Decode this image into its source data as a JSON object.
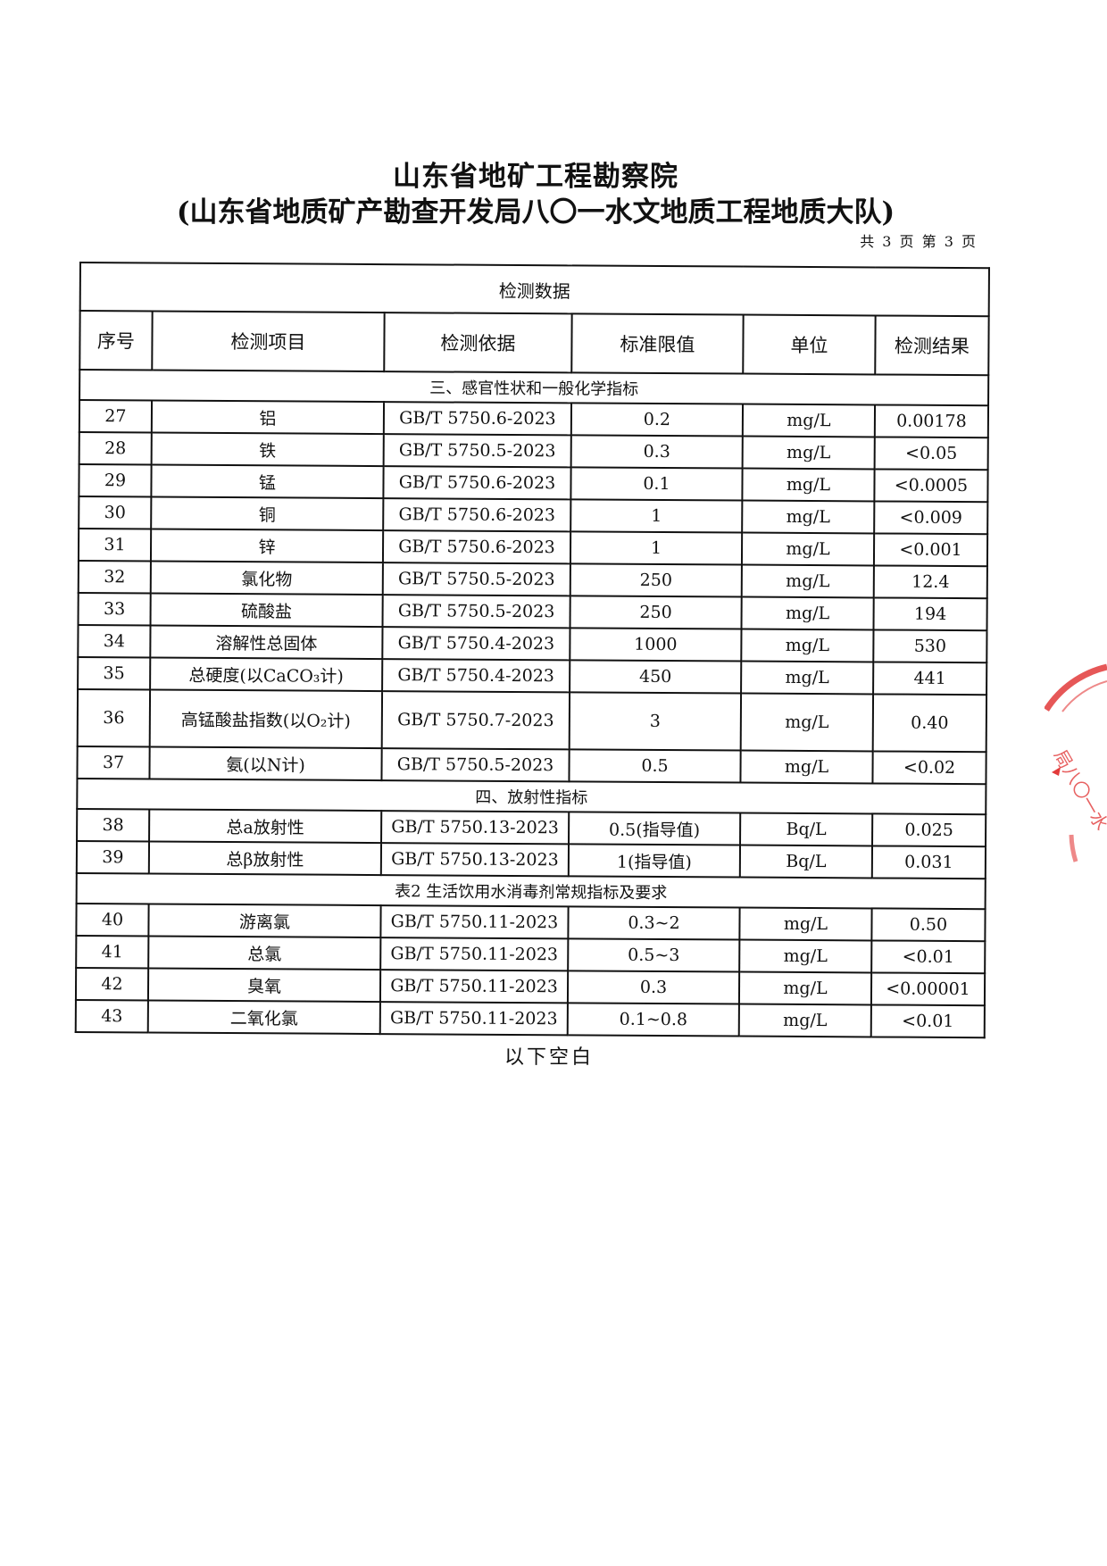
{
  "header": {
    "title": "山东省地矿工程勘察院",
    "subtitle": "(山东省地质矿产勘查开发局八〇一水文地质工程地质大队)",
    "page_info": "共 3 页 第 3 页"
  },
  "table": {
    "caption": "检测数据",
    "columns": [
      "序号",
      "检测项目",
      "检测依据",
      "标准限值",
      "单位",
      "检测结果"
    ],
    "rows": [
      {
        "section": "三、感官性状和一般化学指标"
      },
      {
        "no": "27",
        "item": "铝",
        "method": "GB/T 5750.6-2023",
        "limit": "0.2",
        "unit": "mg/L",
        "result": "0.00178"
      },
      {
        "no": "28",
        "item": "铁",
        "method": "GB/T 5750.5-2023",
        "limit": "0.3",
        "unit": "mg/L",
        "result": "<0.05"
      },
      {
        "no": "29",
        "item": "锰",
        "method": "GB/T 5750.6-2023",
        "limit": "0.1",
        "unit": "mg/L",
        "result": "<0.0005"
      },
      {
        "no": "30",
        "item": "铜",
        "method": "GB/T 5750.6-2023",
        "limit": "1",
        "unit": "mg/L",
        "result": "<0.009"
      },
      {
        "no": "31",
        "item": "锌",
        "method": "GB/T 5750.6-2023",
        "limit": "1",
        "unit": "mg/L",
        "result": "<0.001"
      },
      {
        "no": "32",
        "item": "氯化物",
        "method": "GB/T 5750.5-2023",
        "limit": "250",
        "unit": "mg/L",
        "result": "12.4"
      },
      {
        "no": "33",
        "item": "硫酸盐",
        "method": "GB/T 5750.5-2023",
        "limit": "250",
        "unit": "mg/L",
        "result": "194"
      },
      {
        "no": "34",
        "item": "溶解性总固体",
        "method": "GB/T 5750.4-2023",
        "limit": "1000",
        "unit": "mg/L",
        "result": "530"
      },
      {
        "no": "35",
        "item": "总硬度(以CaCO₃计)",
        "method": "GB/T 5750.4-2023",
        "limit": "450",
        "unit": "mg/L",
        "result": "441"
      },
      {
        "no": "36",
        "item": "高锰酸盐指数(以O₂计)",
        "method": "GB/T 5750.7-2023",
        "limit": "3",
        "unit": "mg/L",
        "result": "0.40",
        "tall": true
      },
      {
        "no": "37",
        "item": "氨(以N计)",
        "method": "GB/T 5750.5-2023",
        "limit": "0.5",
        "unit": "mg/L",
        "result": "<0.02"
      },
      {
        "section": "四、放射性指标"
      },
      {
        "no": "38",
        "item": "总a放射性",
        "method": "GB/T 5750.13-2023",
        "limit": "0.5(指导值)",
        "unit": "Bq/L",
        "result": "0.025"
      },
      {
        "no": "39",
        "item": "总β放射性",
        "method": "GB/T 5750.13-2023",
        "limit": "1(指导值)",
        "unit": "Bq/L",
        "result": "0.031"
      },
      {
        "section": "表2   生活饮用水消毒剂常规指标及要求"
      },
      {
        "no": "40",
        "item": "游离氯",
        "method": "GB/T 5750.11-2023",
        "limit": "0.3~2",
        "unit": "mg/L",
        "result": "0.50"
      },
      {
        "no": "41",
        "item": "总氯",
        "method": "GB/T 5750.11-2023",
        "limit": "0.5~3",
        "unit": "mg/L",
        "result": "<0.01"
      },
      {
        "no": "42",
        "item": "臭氧",
        "method": "GB/T 5750.11-2023",
        "limit": "0.3",
        "unit": "mg/L",
        "result": "<0.00001"
      },
      {
        "no": "43",
        "item": "二氧化氯",
        "method": "GB/T 5750.11-2023",
        "limit": "0.1~0.8",
        "unit": "mg/L",
        "result": "<0.01"
      }
    ]
  },
  "footer": {
    "blank_note": "以下空白"
  },
  "stamp": {
    "color": "#e23a3a",
    "text": "山东省地质矿产勘查开发局八〇一水文地质工程地质大队"
  }
}
